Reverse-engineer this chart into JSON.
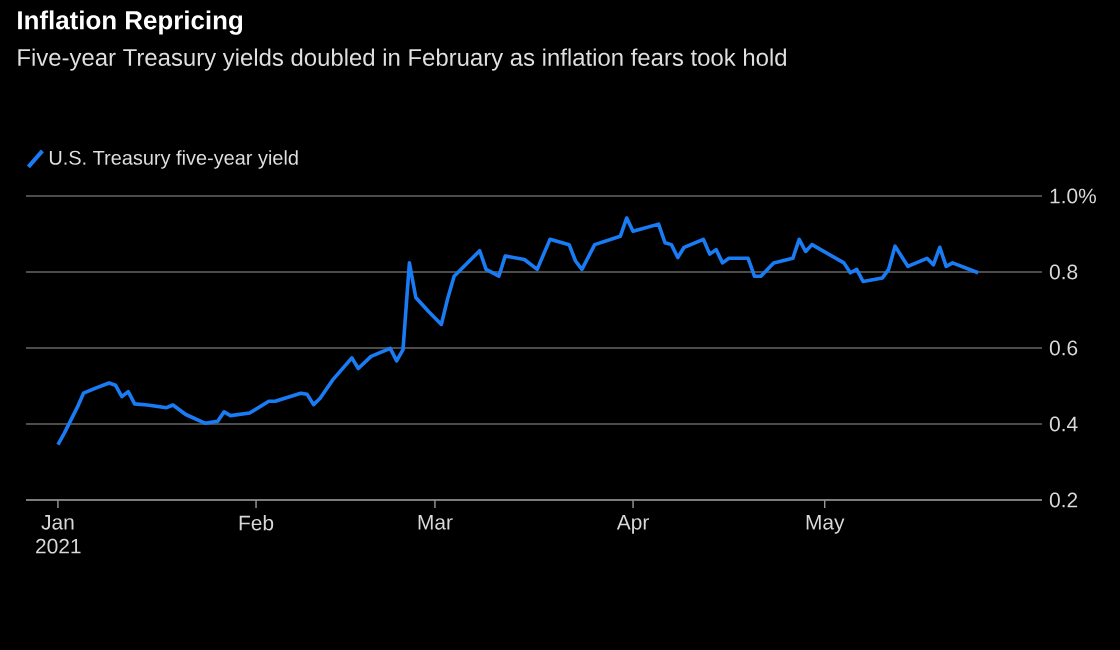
{
  "chart_data": {
    "type": "line",
    "title": "Inflation Repricing",
    "subtitle": "Five-year Treasury yields doubled in February as inflation fears took hold",
    "x": [
      "2021-01-01",
      "2021-01-02",
      "2021-01-04",
      "2021-01-05",
      "2021-01-07",
      "2021-01-09",
      "2021-01-10",
      "2021-01-11",
      "2021-01-12",
      "2021-01-13",
      "2021-01-15",
      "2021-01-18",
      "2021-01-19",
      "2021-01-21",
      "2021-01-24",
      "2021-01-26",
      "2021-01-27",
      "2021-01-28",
      "2021-01-31",
      "2021-02-03",
      "2021-02-04",
      "2021-02-08",
      "2021-02-09",
      "2021-02-10",
      "2021-02-11",
      "2021-02-13",
      "2021-02-16",
      "2021-02-17",
      "2021-02-19",
      "2021-02-22",
      "2021-02-23",
      "2021-02-24",
      "2021-02-25",
      "2021-02-26",
      "2021-02-28",
      "2021-03-02",
      "2021-03-03",
      "2021-03-04",
      "2021-03-08",
      "2021-03-09",
      "2021-03-11",
      "2021-03-12",
      "2021-03-15",
      "2021-03-17",
      "2021-03-19",
      "2021-03-22",
      "2021-03-23",
      "2021-03-24",
      "2021-03-26",
      "2021-03-30",
      "2021-03-31",
      "2021-04-01",
      "2021-04-05",
      "2021-04-06",
      "2021-04-07",
      "2021-04-08",
      "2021-04-09",
      "2021-04-12",
      "2021-04-13",
      "2021-04-14",
      "2021-04-15",
      "2021-04-16",
      "2021-04-19",
      "2021-04-20",
      "2021-04-21",
      "2021-04-23",
      "2021-04-26",
      "2021-04-27",
      "2021-04-28",
      "2021-04-29",
      "2021-05-04",
      "2021-05-05",
      "2021-05-06",
      "2021-05-07",
      "2021-05-10",
      "2021-05-11",
      "2021-05-12",
      "2021-05-14",
      "2021-05-17",
      "2021-05-18",
      "2021-05-19",
      "2021-05-20",
      "2021-05-21",
      "2021-05-25"
    ],
    "series": [
      {
        "name": "U.S. Treasury five-year yield",
        "color": "#1a7cf5",
        "values": [
          0.346,
          0.376,
          0.443,
          0.481,
          0.495,
          0.508,
          0.502,
          0.472,
          0.485,
          0.453,
          0.45,
          0.443,
          0.45,
          0.425,
          0.402,
          0.407,
          0.432,
          0.422,
          0.429,
          0.46,
          0.46,
          0.481,
          0.478,
          0.451,
          0.467,
          0.516,
          0.574,
          0.546,
          0.578,
          0.599,
          0.566,
          0.596,
          0.824,
          0.733,
          0.696,
          0.662,
          0.731,
          0.789,
          0.856,
          0.807,
          0.789,
          0.842,
          0.833,
          0.807,
          0.886,
          0.872,
          0.829,
          0.807,
          0.872,
          0.894,
          0.942,
          0.907,
          0.926,
          0.877,
          0.872,
          0.838,
          0.865,
          0.886,
          0.847,
          0.859,
          0.824,
          0.836,
          0.836,
          0.789,
          0.789,
          0.824,
          0.836,
          0.886,
          0.854,
          0.872,
          0.824,
          0.798,
          0.807,
          0.775,
          0.784,
          0.807,
          0.868,
          0.815,
          0.836,
          0.819,
          0.865,
          0.815,
          0.824,
          0.798
        ]
      }
    ],
    "xlim": [
      "2020-12-27",
      "2021-06-04"
    ],
    "xticks": [
      {
        "value": "2021-01-01",
        "label": "Jan 2021"
      },
      {
        "value": "2021-02-01",
        "label": "Feb"
      },
      {
        "value": "2021-03-01",
        "label": "Mar"
      },
      {
        "value": "2021-04-01",
        "label": "Apr"
      },
      {
        "value": "2021-05-01",
        "label": "May"
      }
    ],
    "ylim": [
      0.2,
      1.0
    ],
    "yticks": [
      0.2,
      0.4,
      0.6,
      0.8,
      {
        "value": 1.0,
        "label": "1.0%"
      }
    ],
    "grid": "y",
    "legend": "top left",
    "marker": "none",
    "line_style": "solid"
  }
}
